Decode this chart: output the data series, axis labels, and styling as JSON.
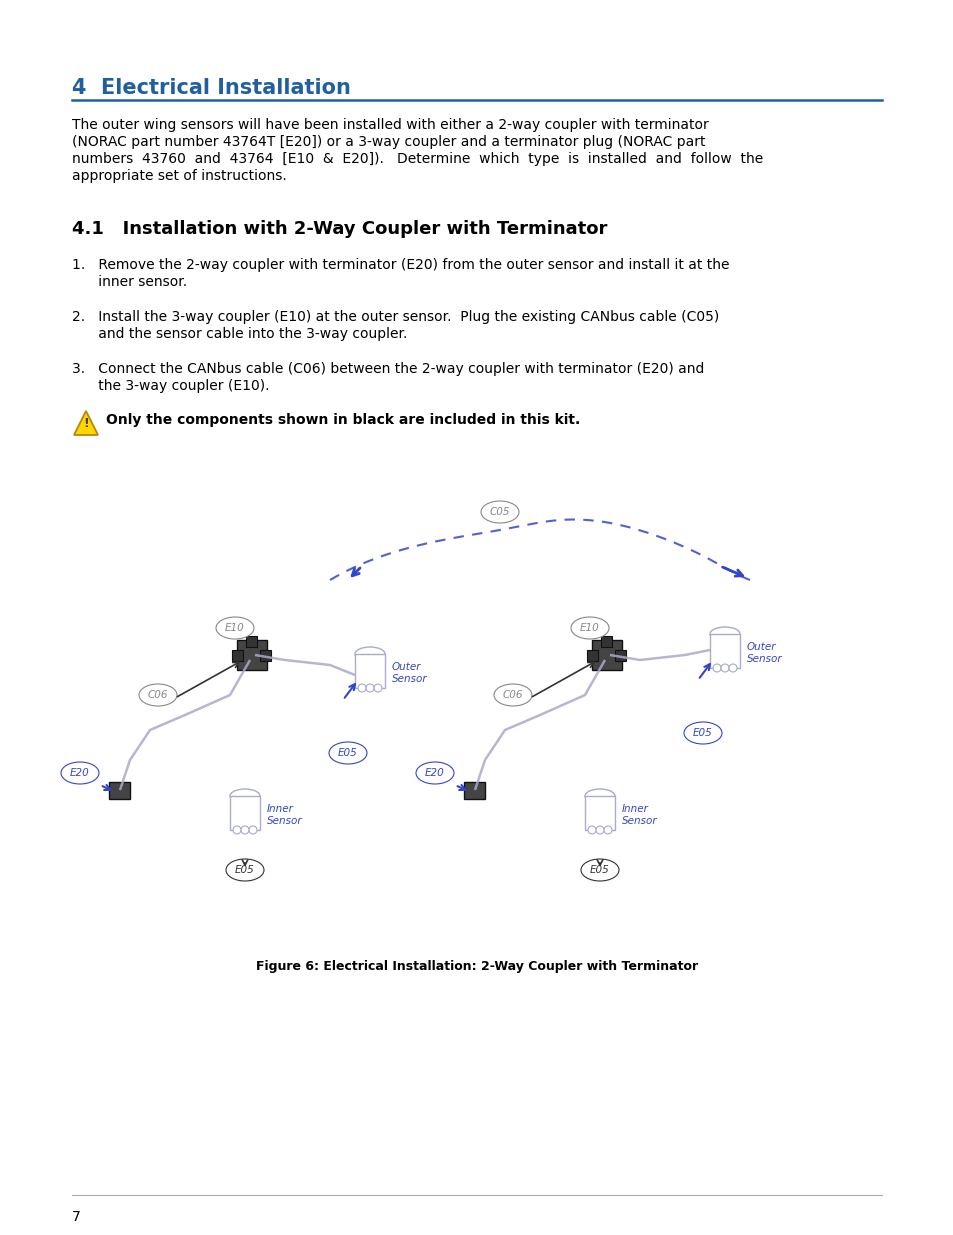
{
  "page_bg": "#ffffff",
  "title": "4  Electrical Installation",
  "title_color": "#2060a0",
  "title_fontsize": 15,
  "section_title": "4.1   Installation with 2-Way Coupler with Terminator",
  "section_fontsize": 13,
  "body_fontsize": 10,
  "body_color": "#000000",
  "para1_line1": "The outer wing sensors will have been installed with either a 2-way coupler with terminator",
  "para1_line2": "(NORAC part number 43764T [E20]) or a 3-way coupler and a terminator plug (NORAC part",
  "para1_line3": "numbers  43760  and  43764  [E10  &  E20]).   Determine  which  type  is  installed  and  follow  the",
  "para1_line4": "appropriate set of instructions.",
  "step1_line1": "1.   Remove the 2-way coupler with terminator (E20) from the outer sensor and install it at the",
  "step1_line2": "      inner sensor.",
  "step2_line1": "2.   Install the 3-way coupler (E10) at the outer sensor.  Plug the existing CANbus cable (C05)",
  "step2_line2": "      and the sensor cable into the 3-way coupler.",
  "step3_line1": "3.   Connect the CANbus cable (C06) between the 2-way coupler with terminator (E20) and",
  "step3_line2": "      the 3-way coupler (E10).",
  "warning_text": "Only the components shown in black are included in this kit.",
  "figure_caption": "Figure 6: Electrical Installation: 2-Way Coupler with Terminator",
  "footer_text": "7",
  "line_color": "#2060a0",
  "footer_line_color": "#aaaaaa",
  "blue": "#3344cc",
  "dark": "#222222",
  "gray": "#666666"
}
